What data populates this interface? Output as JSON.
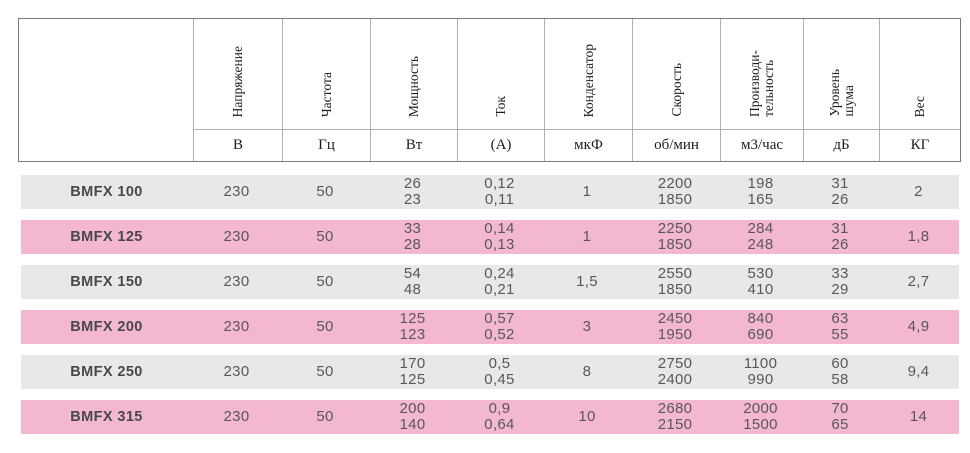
{
  "theme": {
    "row_gray": "#e9e8e8",
    "row_pink": "#f4b7d1",
    "text": "#58585b",
    "name_text": "#48484a",
    "header_text": "#1c1c1c",
    "border_outer": "#7a7a7a",
    "border_inner": "#b0b0b0"
  },
  "table": {
    "columns": [
      {
        "label": "Напряжение",
        "unit": "В"
      },
      {
        "label": "Частота",
        "unit": "Гц"
      },
      {
        "label": "Мощность",
        "unit": "Вт"
      },
      {
        "label": "Ток",
        "unit": "(А)"
      },
      {
        "label": "Конденсатор",
        "unit": "мкФ"
      },
      {
        "label": "Скорость",
        "unit": "об/мин"
      },
      {
        "label": "Производи-\nтельность",
        "unit": "м3/час"
      },
      {
        "label": "Уровень\nшума",
        "unit": "дБ"
      },
      {
        "label": "Вес",
        "unit": "КГ"
      }
    ],
    "rows": [
      {
        "name": "BMFX 100",
        "values": [
          "230",
          "50",
          "26\n23",
          "0,12\n0,11",
          "1",
          "2200\n1850",
          "198\n165",
          "31\n26",
          "2"
        ]
      },
      {
        "name": "BMFX 125",
        "values": [
          "230",
          "50",
          "33\n28",
          "0,14\n0,13",
          "1",
          "2250\n1850",
          "284\n248",
          "31\n26",
          "1,8"
        ]
      },
      {
        "name": "BMFX 150",
        "values": [
          "230",
          "50",
          "54\n48",
          "0,24\n0,21",
          "1,5",
          "2550\n1850",
          "530\n410",
          "33\n29",
          "2,7"
        ]
      },
      {
        "name": "BMFX 200",
        "values": [
          "230",
          "50",
          "125\n123",
          "0,57\n0,52",
          "3",
          "2450\n1950",
          "840\n690",
          "63\n55",
          "4,9"
        ]
      },
      {
        "name": "BMFX 250",
        "values": [
          "230",
          "50",
          "170\n125",
          "0,5\n0,45",
          "8",
          "2750\n2400",
          "1100\n990",
          "60\n58",
          "9,4"
        ]
      },
      {
        "name": "BMFX 315",
        "values": [
          "230",
          "50",
          "200\n140",
          "0,9\n0,64",
          "10",
          "2680\n2150",
          "2000\n1500",
          "70\n65",
          "14"
        ]
      }
    ]
  }
}
